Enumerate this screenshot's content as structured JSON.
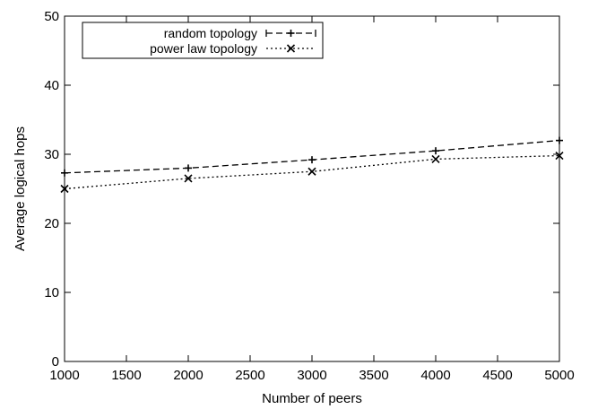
{
  "chart_data": {
    "type": "line",
    "xlabel": "Number of peers",
    "ylabel": "Average logical hops",
    "xlim": [
      1000,
      5000
    ],
    "ylim": [
      0,
      50
    ],
    "xticks": [
      1000,
      1500,
      2000,
      2500,
      3000,
      3500,
      4000,
      4500,
      5000
    ],
    "yticks": [
      0,
      10,
      20,
      30,
      40,
      50
    ],
    "grid": false,
    "legend_position": "top-left",
    "series": [
      {
        "name": "random topology",
        "x": [
          1000,
          2000,
          3000,
          4000,
          5000
        ],
        "y": [
          27.3,
          28.0,
          29.2,
          30.5,
          32.0
        ],
        "line_style": "dashed",
        "marker": "plus",
        "color": "#000000"
      },
      {
        "name": "power law topology",
        "x": [
          1000,
          2000,
          3000,
          4000,
          5000
        ],
        "y": [
          25.0,
          26.5,
          27.5,
          29.3,
          29.8
        ],
        "line_style": "dotted",
        "marker": "cross",
        "color": "#000000"
      }
    ]
  }
}
